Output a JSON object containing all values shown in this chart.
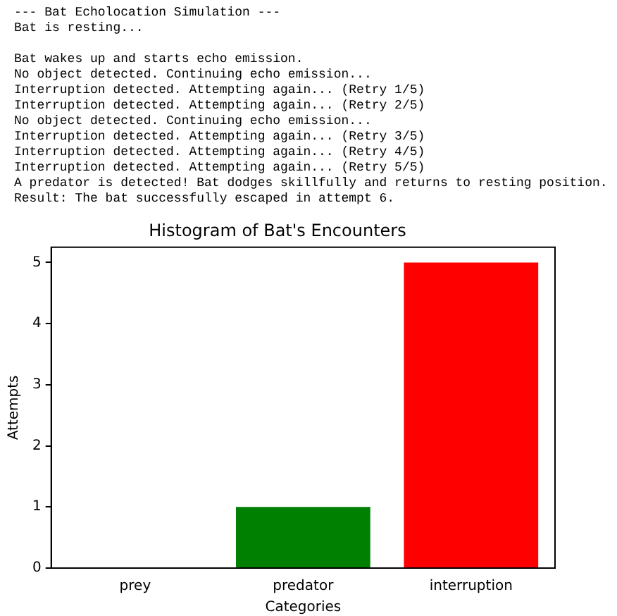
{
  "chart_data": {
    "type": "bar",
    "title": "Histogram of Bat's Encounters",
    "xlabel": "Categories",
    "ylabel": "Attempts",
    "categories": [
      "prey",
      "predator",
      "interruption"
    ],
    "values": [
      0,
      1,
      5
    ],
    "colors": [
      "#0000ff",
      "#008000",
      "#ff0000"
    ],
    "ylim": [
      0,
      5.25
    ],
    "yticks": [
      0,
      1,
      2,
      3,
      4,
      5
    ],
    "grid": false,
    "legend": false,
    "annotations": [
      "--- Bat Echolocation Simulation ---",
      "Bat is resting...",
      "Bat wakes up and starts echo emission.",
      "No object detected. Continuing echo emission...",
      "Interruption detected. Attempting again... (Retry 1/5)",
      "Interruption detected. Attempting again... (Retry 2/5)",
      "No object detected. Continuing echo emission...",
      "Interruption detected. Attempting again... (Retry 3/5)",
      "Interruption detected. Attempting again... (Retry 4/5)",
      "Interruption detected. Attempting again... (Retry 5/5)",
      "A predator is detected! Bat dodges skillfully and returns to resting position.",
      "Result: The bat successfully escaped in attempt 6."
    ]
  }
}
